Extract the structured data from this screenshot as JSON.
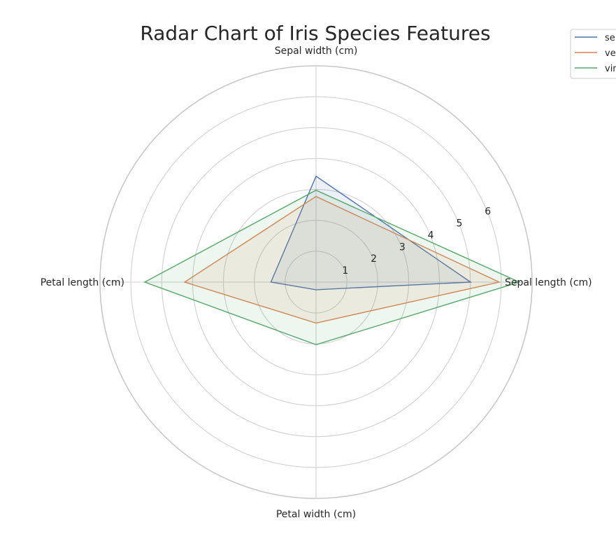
{
  "chart_data": {
    "type": "radar",
    "title": "Radar Chart of Iris Species Features",
    "axes": [
      "Sepal length (cm)",
      "Sepal width (cm)",
      "Petal length (cm)",
      "Petal width (cm)"
    ],
    "rlim": [
      0,
      7
    ],
    "radial_ticks": [
      1,
      2,
      3,
      4,
      5,
      6
    ],
    "grid": true,
    "legend_position": "top-right",
    "series": [
      {
        "name": "setosa",
        "legend_text": "se",
        "color": "#4c72b0",
        "values": [
          5.006,
          3.428,
          1.462,
          0.246
        ]
      },
      {
        "name": "versicolor",
        "legend_text": "ve",
        "color": "#dd8452",
        "values": [
          5.936,
          2.77,
          4.26,
          1.326
        ]
      },
      {
        "name": "virginica",
        "legend_text": "vir",
        "color": "#55a868",
        "values": [
          6.588,
          2.974,
          5.552,
          2.026
        ]
      }
    ]
  }
}
